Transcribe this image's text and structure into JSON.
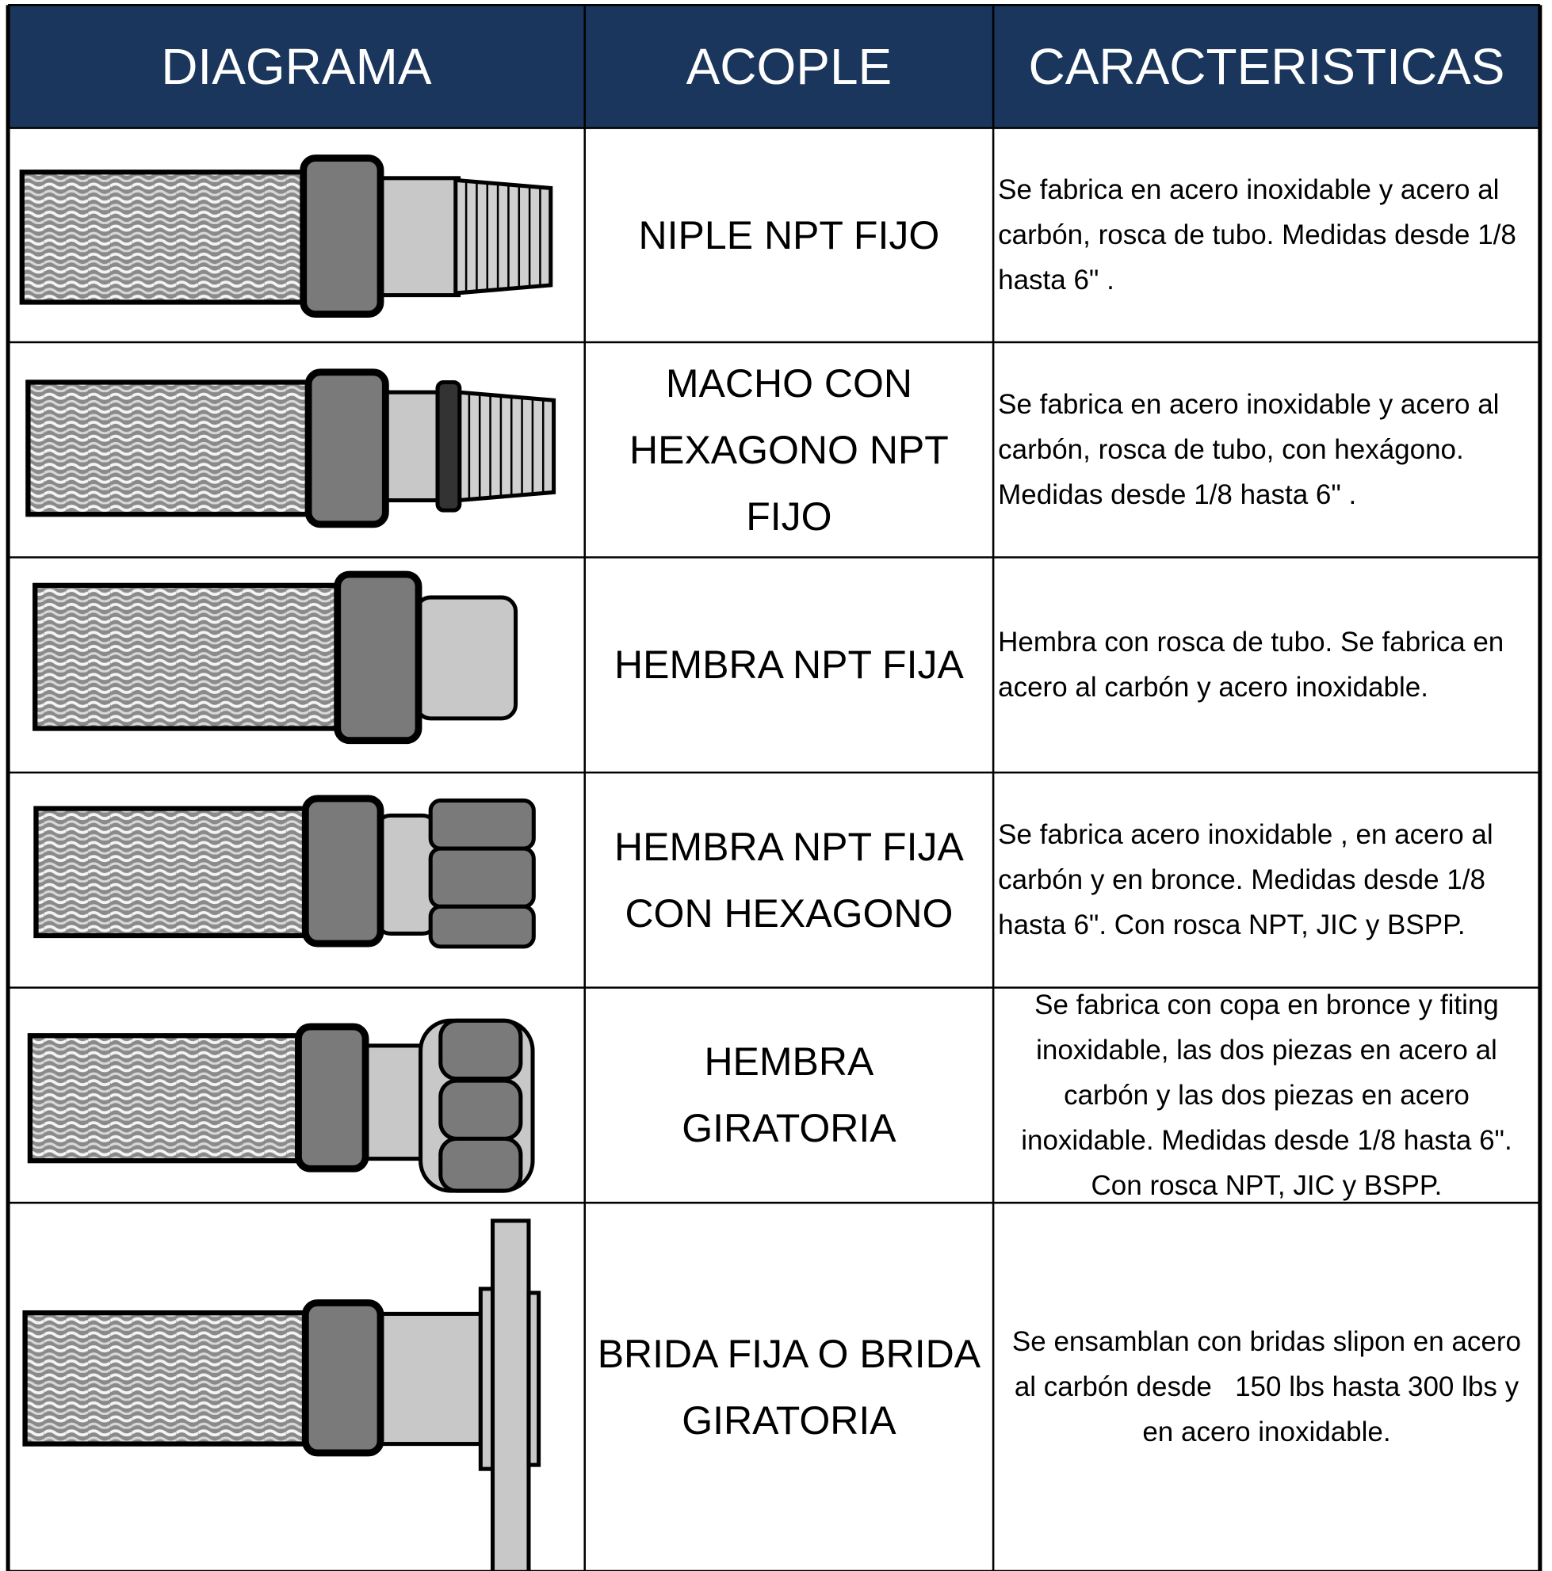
{
  "header": {
    "columns": [
      "DIAGRAMA",
      "ACOPLE",
      "CARACTERISTICAS"
    ]
  },
  "rows": [
    {
      "acople": "NIPLE NPT FIJO",
      "caracteristicas": "Se fabrica en acero inoxidable y acero al carbón, rosca de tubo. Medidas desde 1/8 hasta 6\" ."
    },
    {
      "acople": "MACHO CON HEXAGONO NPT FIJO",
      "caracteristicas": "Se fabrica en acero inoxidable y acero al carbón, rosca de tubo, con hexágono.   Medidas desde 1/8 hasta 6\" ."
    },
    {
      "acople": "HEMBRA NPT FIJA",
      "caracteristicas": "Hembra con rosca de tubo. Se fabrica en acero al carbón y acero inoxidable."
    },
    {
      "acople": "HEMBRA NPT FIJA CON HEXAGONO",
      "caracteristicas": "Se fabrica acero inoxidable , en acero al carbón y en bronce. Medidas desde 1/8 hasta 6\". Con rosca NPT, JIC y BSPP."
    },
    {
      "acople": "HEMBRA GIRATORIA",
      "caracteristicas": "Se fabrica con copa en bronce y fiting inoxidable, las dos piezas en acero al carbón y las dos piezas en acero inoxidable. Medidas desde 1/8 hasta 6\". Con rosca NPT, JIC y BSPP."
    },
    {
      "acople": "BRIDA FIJA O BRIDA GIRATORIA",
      "caracteristicas": "Se ensamblan con bridas slipon en acero al carbón desde   150 lbs hasta 300 lbs y en acero inoxidable."
    }
  ]
}
